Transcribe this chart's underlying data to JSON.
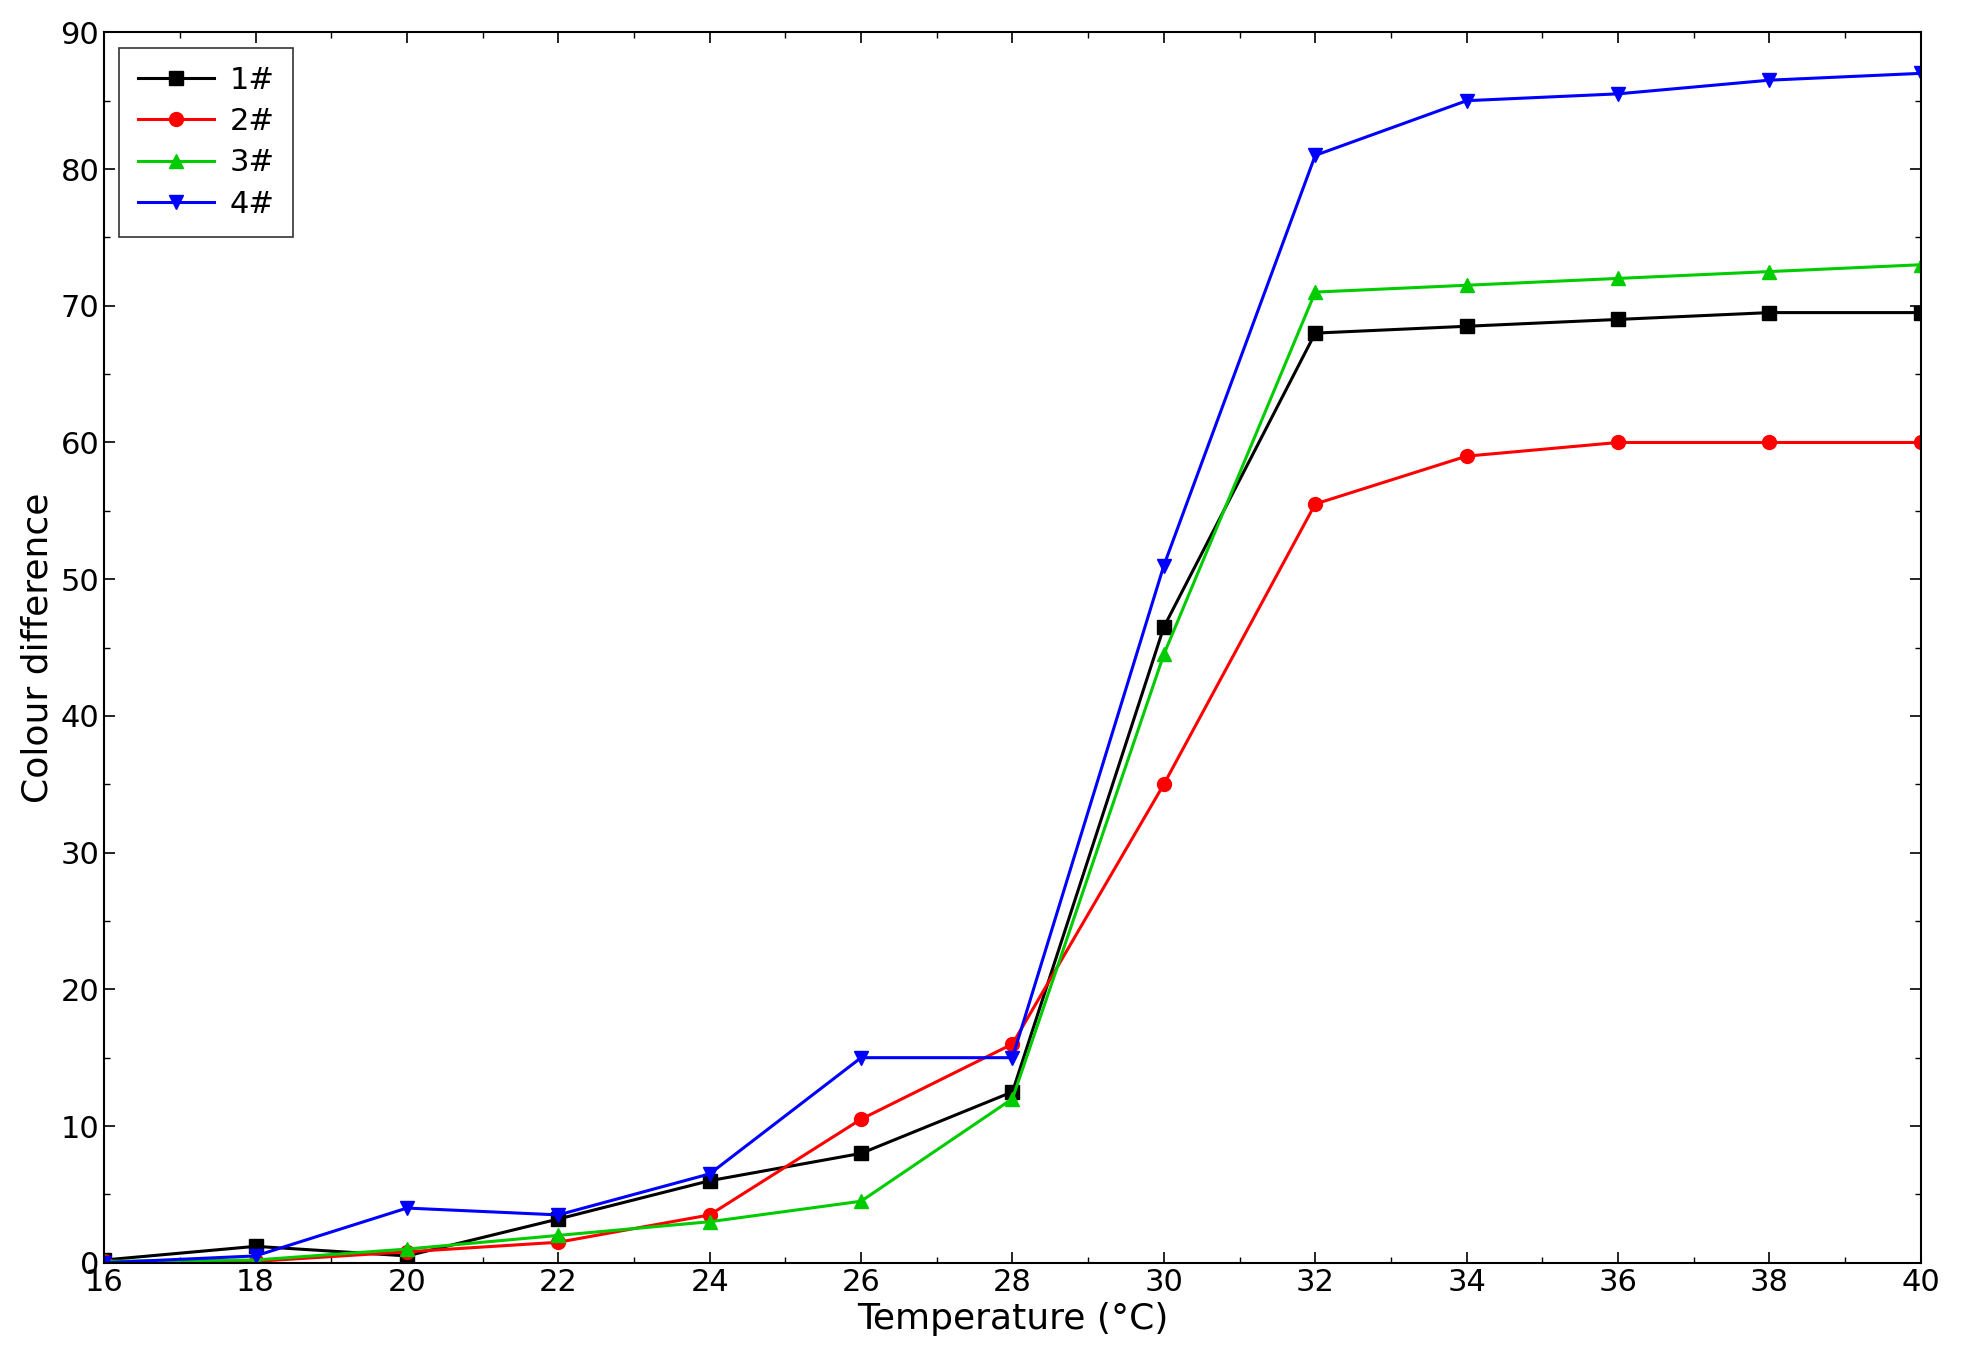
{
  "xlabel": "Temperature (°C)",
  "ylabel": "Colour difference",
  "xlim": [
    16,
    40
  ],
  "ylim": [
    0,
    90
  ],
  "xticks": [
    16,
    18,
    20,
    22,
    24,
    26,
    28,
    30,
    32,
    34,
    36,
    38,
    40
  ],
  "yticks": [
    0,
    10,
    20,
    30,
    40,
    50,
    60,
    70,
    80,
    90
  ],
  "series": [
    {
      "label": "1#",
      "color": "#000000",
      "marker": "s",
      "x": [
        16,
        18,
        20,
        22,
        24,
        26,
        28,
        30,
        32,
        34,
        36,
        38,
        40
      ],
      "y": [
        0.2,
        1.2,
        0.5,
        3.2,
        6.0,
        8.0,
        12.5,
        46.5,
        68.0,
        68.5,
        69.0,
        69.5,
        69.5
      ]
    },
    {
      "label": "2#",
      "color": "#ff0000",
      "marker": "o",
      "x": [
        16,
        18,
        20,
        22,
        24,
        26,
        28,
        30,
        32,
        34,
        36,
        38,
        40
      ],
      "y": [
        0.1,
        0.1,
        0.8,
        1.5,
        3.5,
        10.5,
        16.0,
        35.0,
        55.5,
        59.0,
        60.0,
        60.0,
        60.0
      ]
    },
    {
      "label": "3#",
      "color": "#00cc00",
      "marker": "^",
      "x": [
        16,
        18,
        20,
        22,
        24,
        26,
        28,
        30,
        32,
        34,
        36,
        38,
        40
      ],
      "y": [
        0.1,
        0.2,
        1.0,
        2.0,
        3.0,
        4.5,
        12.0,
        44.5,
        71.0,
        71.5,
        72.0,
        72.5,
        73.0
      ]
    },
    {
      "label": "4#",
      "color": "#0000ff",
      "marker": "v",
      "x": [
        16,
        18,
        20,
        22,
        24,
        26,
        28,
        30,
        32,
        34,
        36,
        38,
        40
      ],
      "y": [
        0.0,
        0.5,
        4.0,
        3.5,
        6.5,
        15.0,
        15.0,
        51.0,
        81.0,
        85.0,
        85.5,
        86.5,
        87.0
      ]
    }
  ],
  "legend_loc": "upper left",
  "marker_size": 10,
  "line_width": 2.2,
  "background_color": "#ffffff",
  "tick_labelsize": 22,
  "axis_labelsize": 26,
  "legend_fontsize": 22
}
